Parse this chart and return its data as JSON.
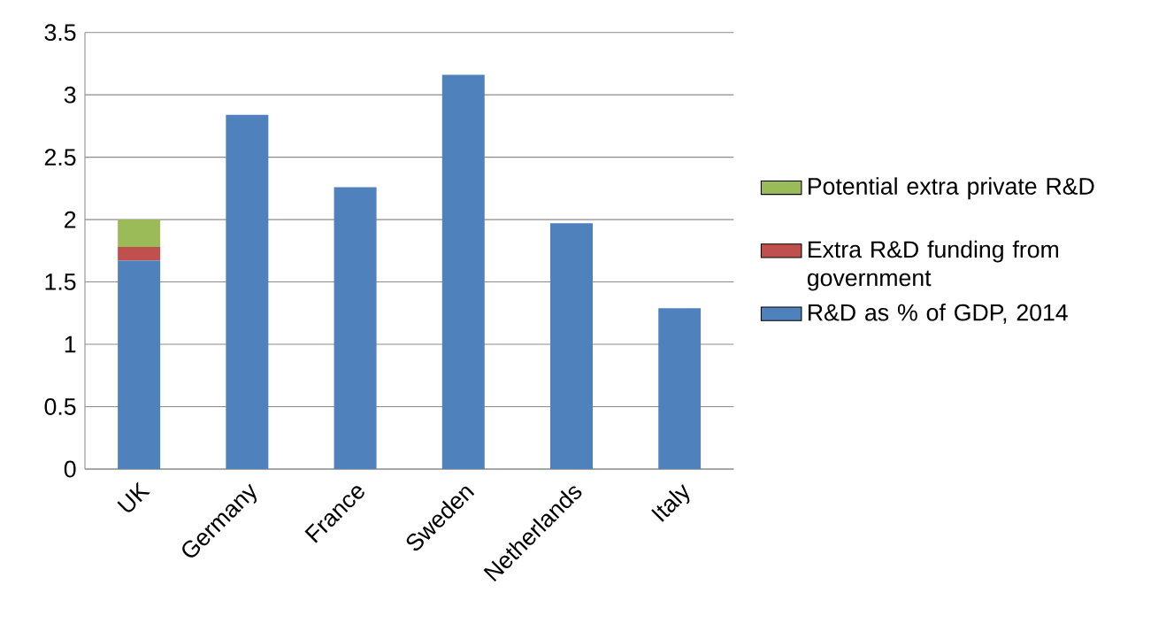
{
  "chart_data": {
    "type": "bar",
    "stacked": true,
    "categories": [
      "UK",
      "Germany",
      "France",
      "Sweden",
      "Netherlands",
      "Italy"
    ],
    "series": [
      {
        "name": "R&D as % of GDP, 2014",
        "color": "#4f81bd",
        "values": [
          1.67,
          2.84,
          2.26,
          3.16,
          1.97,
          1.29
        ]
      },
      {
        "name": "Extra R&D funding from government",
        "color": "#c0504d",
        "values": [
          0.11,
          null,
          null,
          null,
          null,
          null
        ]
      },
      {
        "name": "Potential extra private R&D",
        "color": "#9bbb59",
        "values": [
          0.22,
          null,
          null,
          null,
          null,
          null
        ]
      }
    ],
    "ylim": [
      0,
      3.5
    ],
    "yticks": [
      0,
      0.5,
      1,
      1.5,
      2,
      2.5,
      3,
      3.5
    ],
    "grid": "y",
    "legend": "right"
  }
}
